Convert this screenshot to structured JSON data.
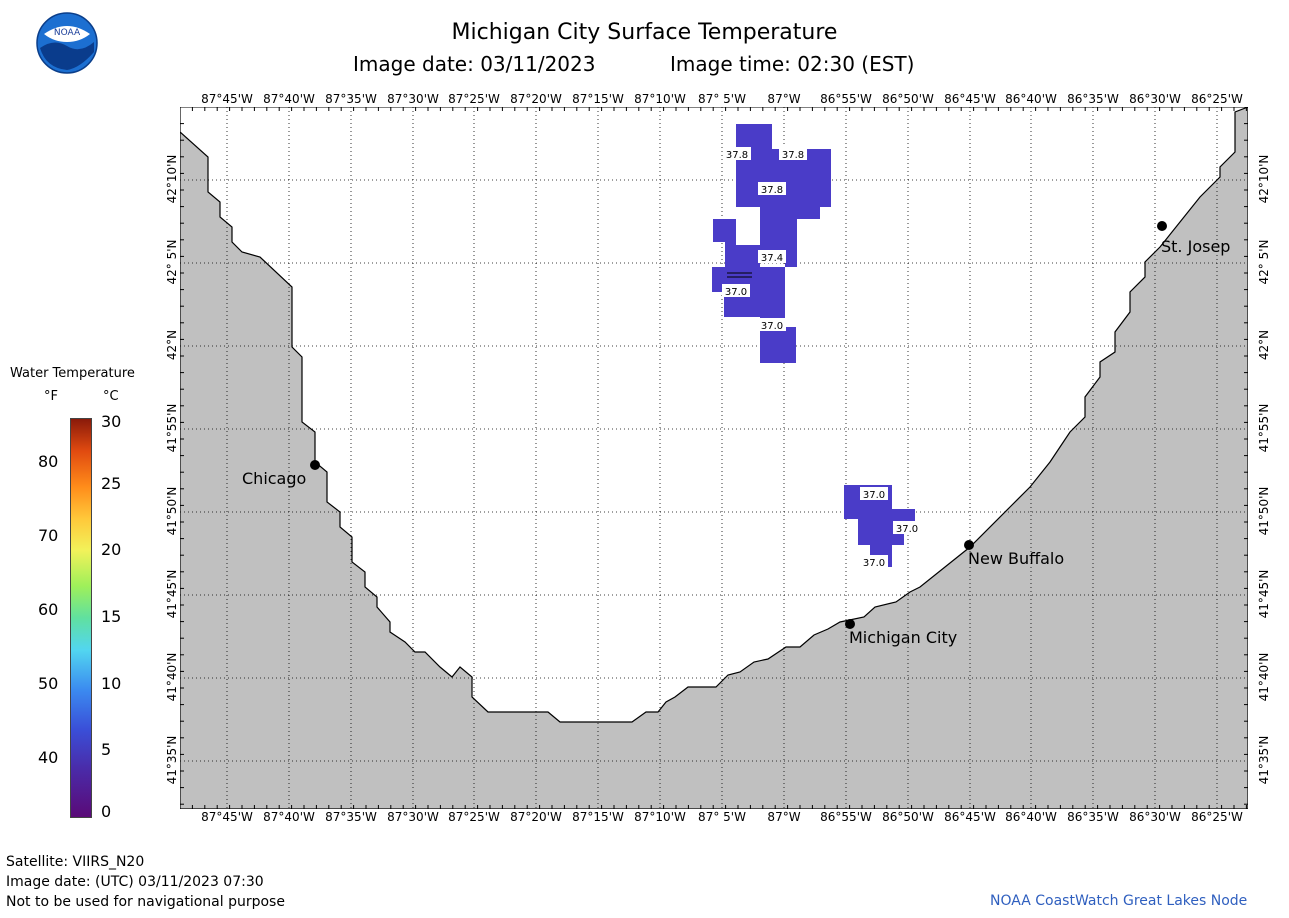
{
  "header": {
    "title": "Michigan City Surface Temperature",
    "image_date": "Image date: 03/11/2023",
    "image_time": "Image time: 02:30 (EST)"
  },
  "logo": {
    "text": "NOAA",
    "icon": "noaa-logo-icon"
  },
  "longitude_labels": [
    "87°45'W",
    "87°40'W",
    "87°35'W",
    "87°30'W",
    "87°25'W",
    "87°20'W",
    "87°15'W",
    "87°10'W",
    "87° 5'W",
    "87°W",
    "86°55'W",
    "86°50'W",
    "86°45'W",
    "86°40'W",
    "86°35'W",
    "86°30'W",
    "86°25'W"
  ],
  "latitude_labels": [
    "42°10'N",
    "42° 5'N",
    "42°N",
    "41°55'N",
    "41°50'N",
    "41°45'N",
    "41°40'N",
    "41°35'N"
  ],
  "legend": {
    "title": "Water Temperature",
    "unit_f": "°F",
    "unit_c": "°C",
    "f_ticks": [
      "80",
      "70",
      "60",
      "50",
      "40"
    ],
    "c_ticks": [
      "30",
      "25",
      "20",
      "15",
      "10",
      "5",
      "0"
    ]
  },
  "cities": {
    "chicago": "Chicago",
    "st_joseph": "St. Josep",
    "new_buffalo": "New Buffalo",
    "michigan_city": "Michigan City"
  },
  "temperature_labels": [
    "37.8",
    "37.8",
    "37.8",
    "37.4",
    "37.0",
    "37.0",
    "37.0",
    "37.0",
    "37.0"
  ],
  "colors": {
    "land": "#c0c0c0",
    "water": "#ffffff",
    "temp_fill": "#4a3cc8",
    "credit": "#2f5fbf"
  },
  "footer": {
    "satellite": "Satellite: VIIRS_N20",
    "utc_date": "Image date: (UTC) 03/11/2023  07:30",
    "disclaimer": "Not to be used for navigational purpose"
  },
  "credit": "NOAA CoastWatch Great Lakes Node"
}
